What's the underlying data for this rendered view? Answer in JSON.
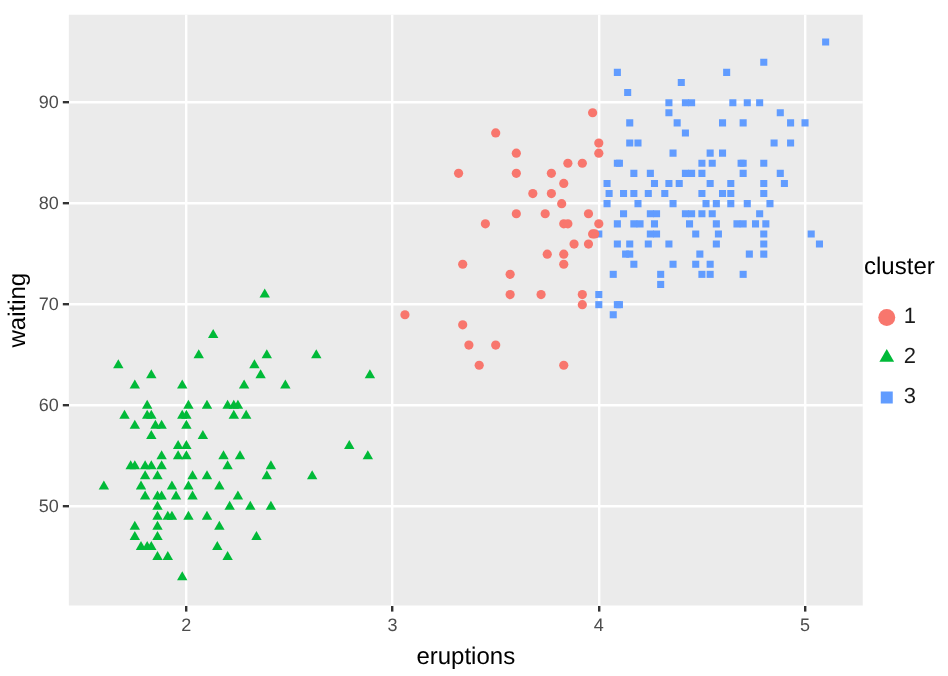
{
  "chart_data": {
    "type": "scatter",
    "xlabel": "eruptions",
    "ylabel": "waiting",
    "legend_title": "cluster",
    "legend": "right",
    "grid": true,
    "xlim": [
      1.43,
      5.28
    ],
    "ylim": [
      40.2,
      98.7
    ],
    "xticks": [
      2,
      3,
      4,
      5
    ],
    "yticks": [
      50,
      60,
      70,
      80,
      90
    ],
    "series": [
      {
        "name": "1",
        "color": "#f8766d",
        "marker": "circle",
        "x": [
          3.06,
          3.97,
          3.5,
          4.0,
          3.6,
          4.0,
          3.85,
          3.92,
          3.32,
          3.6,
          3.77,
          3.83,
          3.68,
          3.77,
          3.82,
          3.6,
          3.74,
          3.95,
          3.45,
          3.83,
          3.85,
          4.0,
          3.97,
          3.98,
          3.88,
          3.95,
          3.75,
          3.83,
          3.34,
          3.83,
          3.57,
          3.57,
          3.72,
          3.92,
          3.92,
          3.34,
          3.37,
          3.5,
          3.42,
          3.83
        ],
        "values": [
          69,
          89,
          87,
          86,
          85,
          85,
          84,
          84,
          83,
          83,
          83,
          82,
          81,
          81,
          80,
          79,
          79,
          79,
          78,
          78,
          78,
          78,
          77,
          77,
          76,
          76,
          75,
          75,
          74,
          74,
          73,
          71,
          71,
          71,
          70,
          68,
          66,
          66,
          64,
          64
        ]
      },
      {
        "name": "2",
        "color": "#00ba38",
        "marker": "triangle",
        "x": [
          2.38,
          2.13,
          2.06,
          2.39,
          2.63,
          1.67,
          2.33,
          1.83,
          2.36,
          2.89,
          1.75,
          1.98,
          2.28,
          2.48,
          1.81,
          2.01,
          2.1,
          2.2,
          2.23,
          2.25,
          1.7,
          1.81,
          1.83,
          1.98,
          2.0,
          2.23,
          2.29,
          1.75,
          1.85,
          1.88,
          2.0,
          1.83,
          2.08,
          1.96,
          2.0,
          2.79,
          1.88,
          1.96,
          2.0,
          2.18,
          2.26,
          2.88,
          1.73,
          1.75,
          1.8,
          1.83,
          1.88,
          2.2,
          2.41,
          1.8,
          1.86,
          2.03,
          2.1,
          2.39,
          2.61,
          1.6,
          1.78,
          1.93,
          2.01,
          2.16,
          1.8,
          1.86,
          1.88,
          1.95,
          2.03,
          2.25,
          1.86,
          2.21,
          2.31,
          2.41,
          1.86,
          1.91,
          1.93,
          2.01,
          2.1,
          1.75,
          1.86,
          2.16,
          1.75,
          1.86,
          2.34,
          1.78,
          1.81,
          1.83,
          2.15,
          1.86,
          1.91,
          2.2,
          1.98
        ],
        "values": [
          71,
          67,
          65,
          65,
          65,
          64,
          64,
          63,
          63,
          63,
          62,
          62,
          62,
          62,
          60,
          60,
          60,
          60,
          60,
          60,
          59,
          59,
          59,
          59,
          59,
          59,
          59,
          58,
          58,
          58,
          58,
          57,
          57,
          56,
          56,
          56,
          55,
          55,
          55,
          55,
          55,
          55,
          54,
          54,
          54,
          54,
          54,
          54,
          54,
          53,
          53,
          53,
          53,
          53,
          53,
          52,
          52,
          52,
          52,
          52,
          51,
          51,
          51,
          51,
          51,
          51,
          50,
          50,
          50,
          50,
          49,
          49,
          49,
          49,
          49,
          48,
          48,
          48,
          47,
          47,
          47,
          46,
          46,
          46,
          46,
          45,
          45,
          45,
          43
        ]
      },
      {
        "name": "3",
        "color": "#619cff",
        "marker": "square",
        "x": [
          5.1,
          4.8,
          4.09,
          4.62,
          4.4,
          4.14,
          4.34,
          4.42,
          4.45,
          4.65,
          4.72,
          4.78,
          4.34,
          4.88,
          4.15,
          4.38,
          4.6,
          4.7,
          4.93,
          5.0,
          4.42,
          4.15,
          4.19,
          4.85,
          4.93,
          4.36,
          4.54,
          4.6,
          4.09,
          4.1,
          4.5,
          4.55,
          4.69,
          4.7,
          4.8,
          4.17,
          4.25,
          4.42,
          4.45,
          4.5,
          4.7,
          4.88,
          4.04,
          4.27,
          4.34,
          4.39,
          4.54,
          4.64,
          4.8,
          4.9,
          4.05,
          4.12,
          4.17,
          4.24,
          4.32,
          4.5,
          4.6,
          4.64,
          4.8,
          4.04,
          4.19,
          4.36,
          4.52,
          4.57,
          4.64,
          4.72,
          4.83,
          4.12,
          4.25,
          4.28,
          4.42,
          4.45,
          4.5,
          4.55,
          4.78,
          4.09,
          4.17,
          4.2,
          4.27,
          4.44,
          4.57,
          4.67,
          4.7,
          4.76,
          4.81,
          4.0,
          4.25,
          4.28,
          4.47,
          4.58,
          4.8,
          5.03,
          4.09,
          4.15,
          4.24,
          4.34,
          4.57,
          4.8,
          5.07,
          4.13,
          4.15,
          4.49,
          4.73,
          4.8,
          4.17,
          4.36,
          4.47,
          4.54,
          4.07,
          4.3,
          4.5,
          4.54,
          4.7,
          4.3,
          4.0,
          4.0,
          4.09,
          4.1,
          4.07
        ],
        "values": [
          96,
          94,
          93,
          93,
          92,
          91,
          90,
          90,
          90,
          90,
          90,
          90,
          89,
          89,
          88,
          88,
          88,
          88,
          88,
          88,
          87,
          86,
          86,
          86,
          86,
          85,
          85,
          85,
          84,
          84,
          84,
          84,
          84,
          84,
          84,
          83,
          83,
          83,
          83,
          83,
          83,
          83,
          82,
          82,
          82,
          82,
          82,
          82,
          82,
          82,
          81,
          81,
          81,
          81,
          81,
          81,
          81,
          81,
          81,
          80,
          80,
          80,
          80,
          80,
          80,
          80,
          80,
          79,
          79,
          79,
          79,
          79,
          79,
          79,
          79,
          78,
          78,
          78,
          78,
          78,
          78,
          78,
          78,
          78,
          78,
          77,
          77,
          77,
          77,
          77,
          77,
          77,
          76,
          76,
          76,
          76,
          76,
          76,
          76,
          75,
          75,
          75,
          75,
          75,
          74,
          74,
          74,
          74,
          73,
          73,
          73,
          73,
          73,
          72,
          71,
          70,
          70,
          70,
          69
        ]
      }
    ]
  }
}
